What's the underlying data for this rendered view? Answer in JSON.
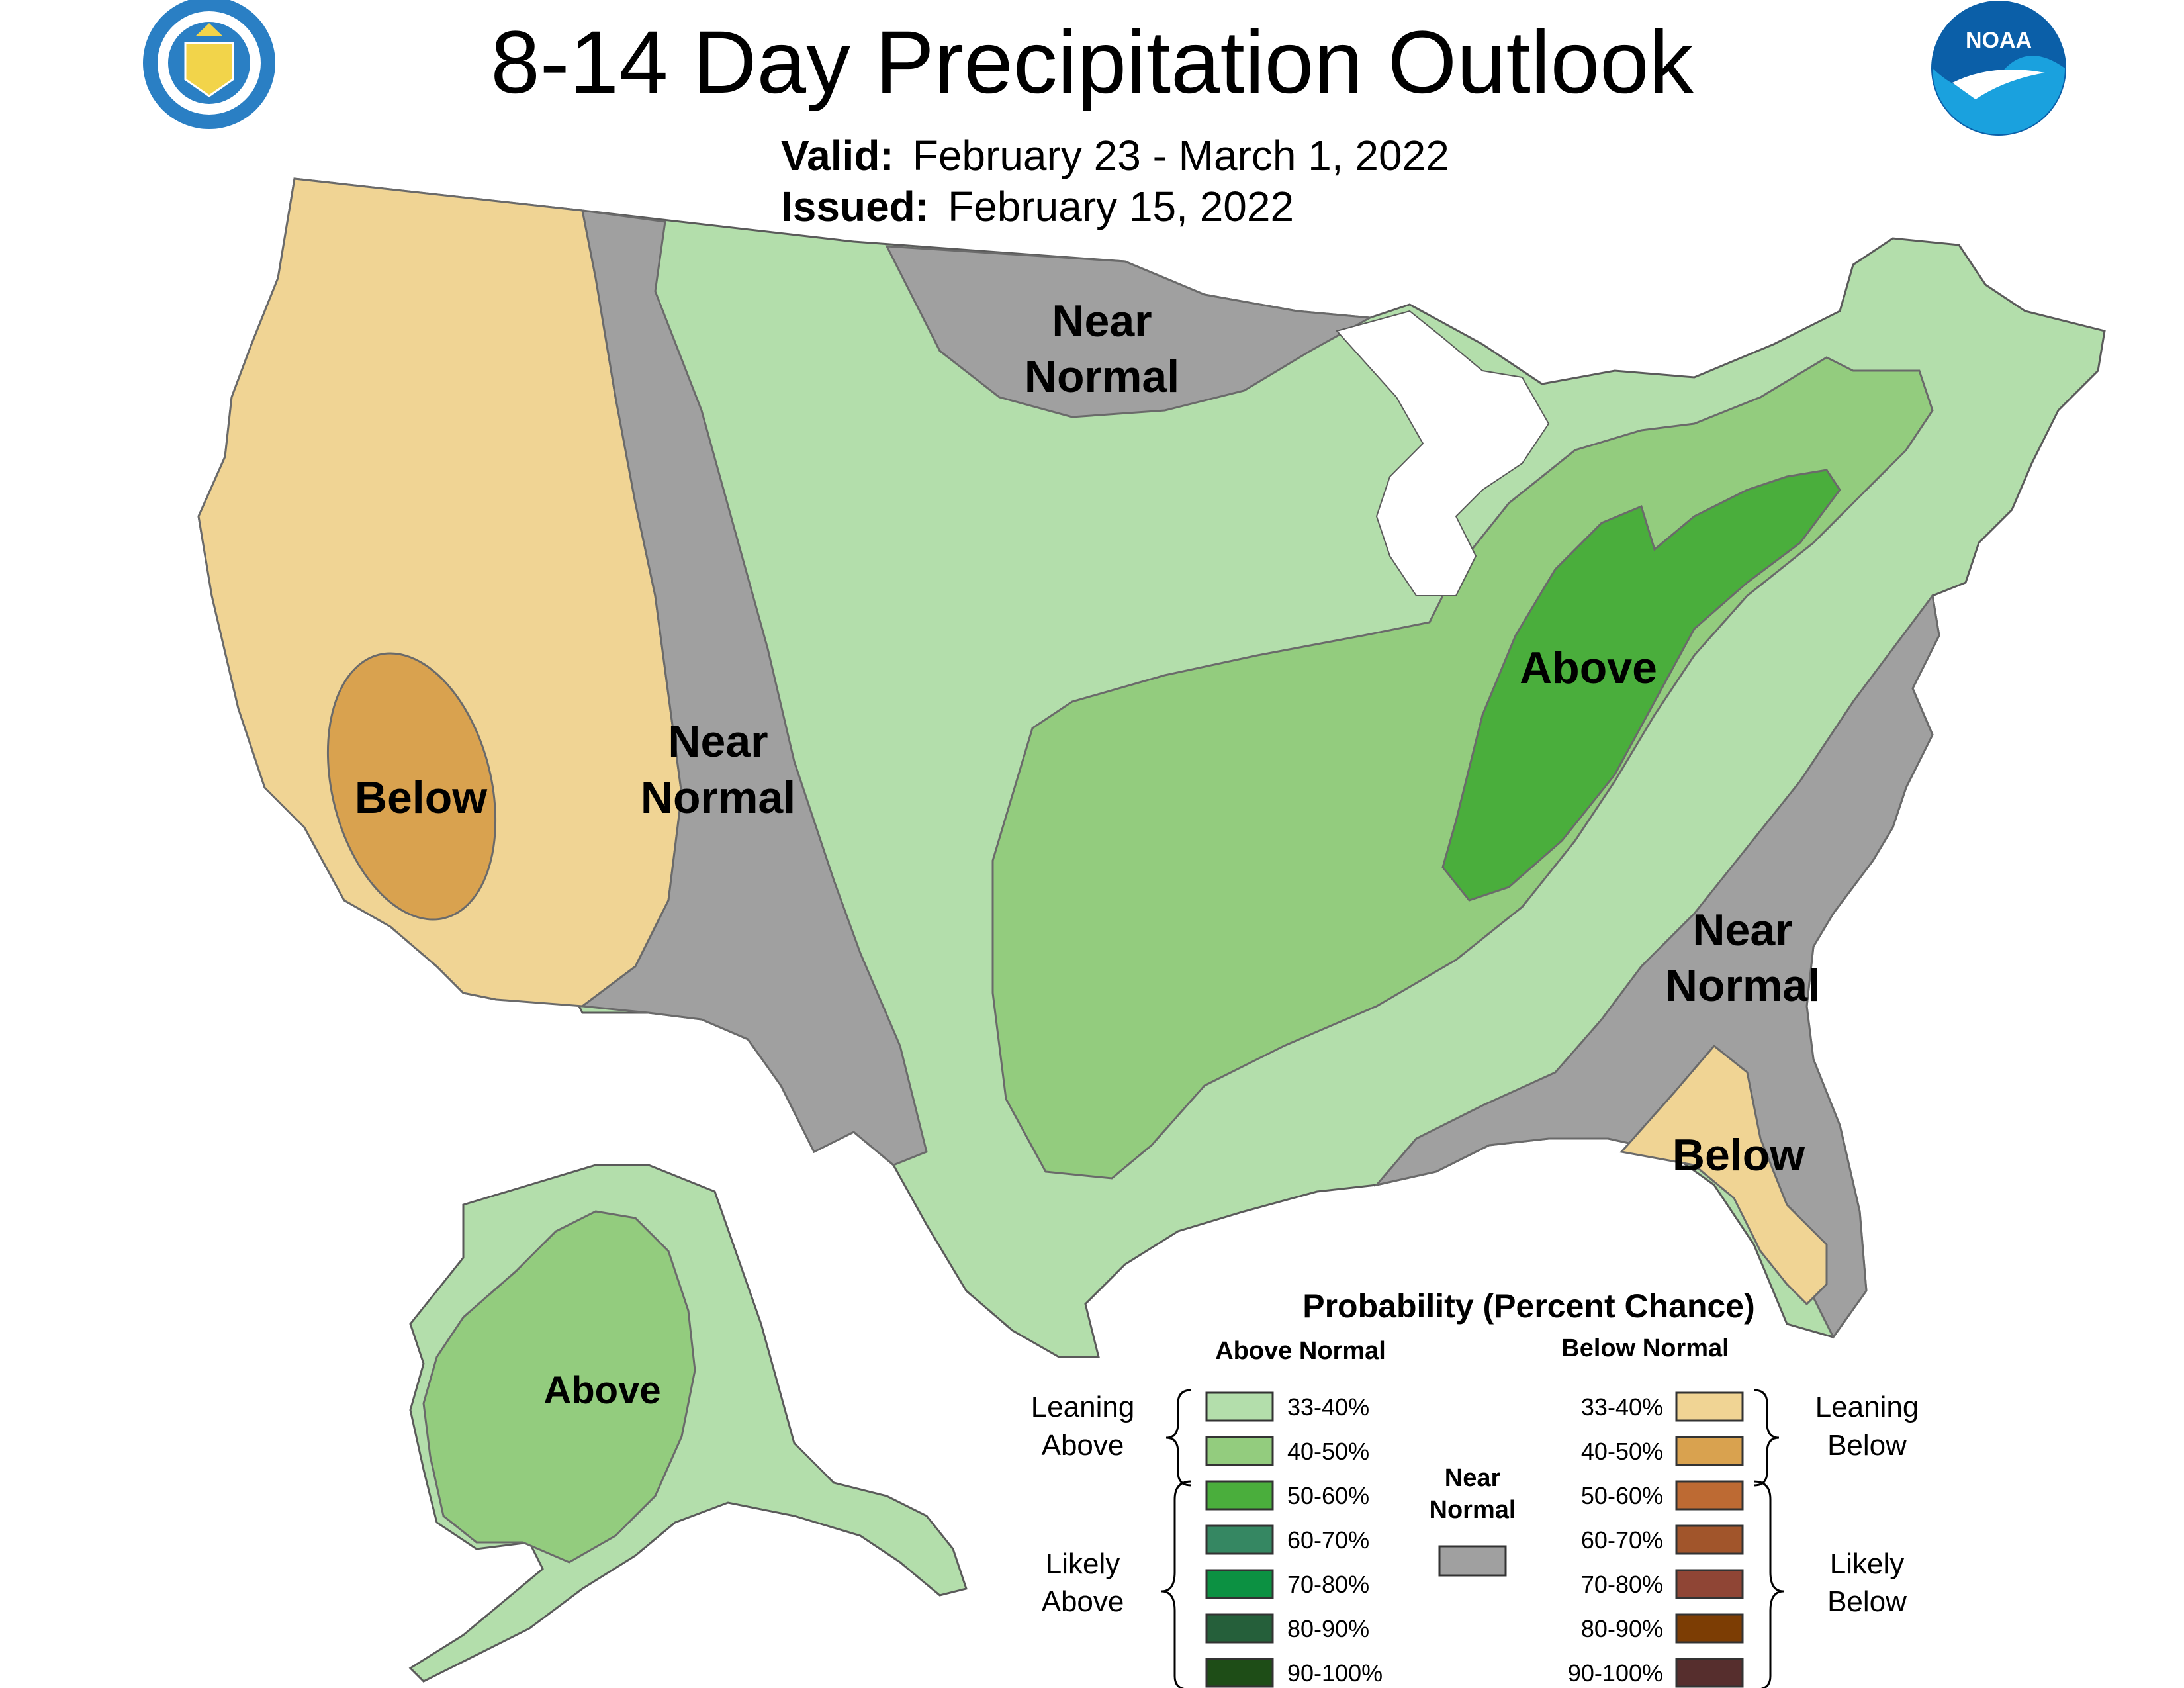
{
  "title": "8-14 Day Precipitation Outlook",
  "valid": {
    "label": "Valid:",
    "value": "February 23 - March 1, 2022"
  },
  "issued": {
    "label": "Issued:",
    "value": "February 15, 2022"
  },
  "logos": {
    "left": "department-of-commerce-seal",
    "right": "noaa-logo"
  },
  "colors": {
    "above_33_40": "#b3deab",
    "above_40_50": "#93cc7e",
    "above_50_60": "#4aae3c",
    "above_60_70": "#358762",
    "above_70_80": "#0c9142",
    "above_80_90": "#255f3a",
    "above_90_100": "#1e4d17",
    "below_33_40": "#f0d494",
    "below_40_50": "#d9a24f",
    "below_50_60": "#bd6a33",
    "below_60_70": "#a1552b",
    "below_70_80": "#8f4535",
    "below_80_90": "#7c3d04",
    "below_90_100": "#562e2d",
    "near_normal": "#a0a0a0",
    "border": "#5a5a5a"
  },
  "map_labels": {
    "west_below": "Below",
    "rockies_near_1": "Near",
    "rockies_near_2": "Normal",
    "north_near_1": "Near",
    "north_near_2": "Normal",
    "ohio_above": "Above",
    "southeast_near_1": "Near",
    "southeast_near_2": "Normal",
    "florida_below": "Below",
    "alaska_above": "Above"
  },
  "legend": {
    "title": "Probability (Percent Chance)",
    "above_header": "Above Normal",
    "below_header": "Below Normal",
    "leaning_above_1": "Leaning",
    "leaning_above_2": "Above",
    "likely_above_1": "Likely",
    "likely_above_2": "Above",
    "leaning_below_1": "Leaning",
    "leaning_below_2": "Below",
    "likely_below_1": "Likely",
    "likely_below_2": "Below",
    "near_1": "Near",
    "near_2": "Normal",
    "above_rows": [
      "33-40%",
      "40-50%",
      "50-60%",
      "60-70%",
      "70-80%",
      "80-90%",
      "90-100%"
    ],
    "below_rows": [
      "33-40%",
      "40-50%",
      "50-60%",
      "60-70%",
      "70-80%",
      "80-90%",
      "90-100%"
    ]
  }
}
